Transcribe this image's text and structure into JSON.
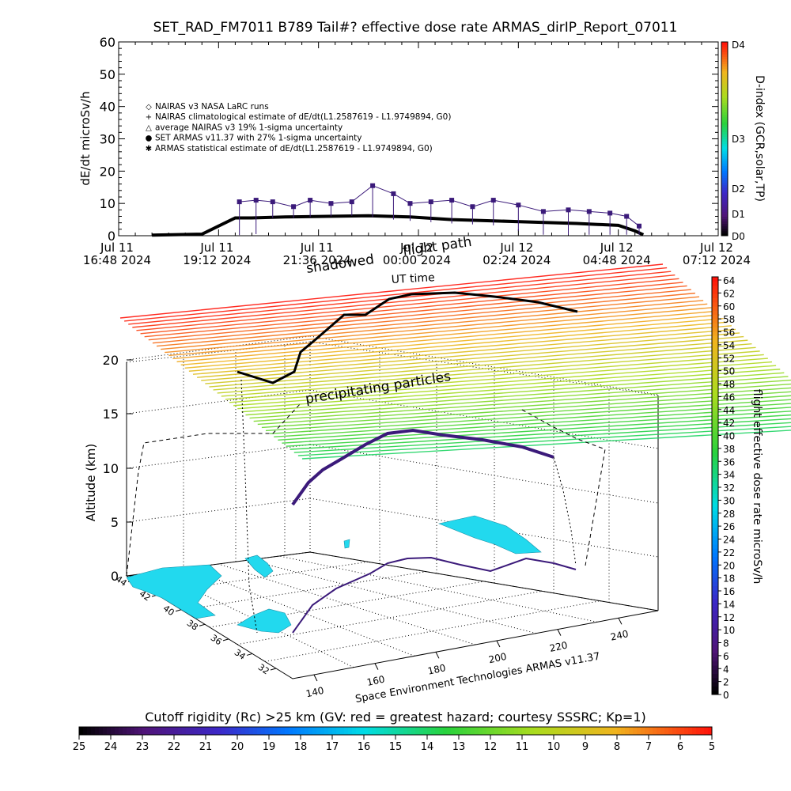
{
  "title": "SET_RAD_FM7011  B789 Tail#? effective dose rate ARMAS_dirIP_Report_07011",
  "chart_data": [
    {
      "type": "line",
      "name": "time-series",
      "ylabel": "dE/dt microSv/h",
      "ylim": [
        0,
        60
      ],
      "yticks": [
        "0",
        "10",
        "20",
        "30",
        "40",
        "50",
        "60"
      ],
      "xticks": [
        {
          "l1": "Jul 11",
          "l2": "16:48 2024"
        },
        {
          "l1": "Jul 11",
          "l2": "19:12 2024"
        },
        {
          "l1": "Jul 11",
          "l2": "21:36 2024"
        },
        {
          "l1": "Jul 12",
          "l2": "00:00 2024"
        },
        {
          "l1": "Jul 12",
          "l2": "02:24 2024"
        },
        {
          "l1": "Jul 12",
          "l2": "04:48 2024"
        },
        {
          "l1": "Jul 12",
          "l2": "07:12 2024"
        }
      ],
      "xlim_hours": [
        0,
        14.4
      ],
      "legend": [
        {
          "symbol": "◇",
          "text": "NAIRAS v3 NASA LaRC runs"
        },
        {
          "symbol": "+",
          "text": "NAIRAS climatological estimate of dE/dt(L1.2587619 - L1.9749894, G0)"
        },
        {
          "symbol": "△",
          "text": "average NAIRAS v3 19% 1-sigma uncertainty"
        },
        {
          "symbol": "●",
          "text": "SET ARMAS v11.37 with 27% 1-sigma uncertainty",
          "color": "#2233cc"
        },
        {
          "symbol": "✱",
          "text": "ARMAS statistical estimate of dE/dt(L1.2587619 - L1.9749894, G0)"
        }
      ],
      "legend_placement": "upper-left",
      "series": [
        {
          "points_hours": [
            0.8,
            2.0,
            2.8,
            3.2,
            4.0,
            5.0,
            6.0,
            7.0,
            8.0,
            9.0,
            10.0,
            11.0,
            11.5,
            12.0,
            12.4,
            12.6
          ],
          "values": [
            0.2,
            0.5,
            5.5,
            5.5,
            5.8,
            6.0,
            6.2,
            5.8,
            5.0,
            4.6,
            4.2,
            3.8,
            3.5,
            3.2,
            1.5,
            0.3
          ],
          "color": "#000000"
        },
        {
          "points_hours": [
            2.9,
            3.3,
            3.7,
            4.2,
            4.6,
            5.1,
            5.6,
            6.1,
            6.6,
            7.0,
            7.5,
            8.0,
            8.5,
            9.0,
            9.6,
            10.2,
            10.8,
            11.3,
            11.8,
            12.2,
            12.5
          ],
          "values": [
            10.5,
            11,
            10.5,
            9,
            11,
            10,
            10.5,
            15.5,
            13,
            10,
            10.5,
            11,
            9,
            11,
            9.5,
            7.5,
            8,
            7.5,
            7,
            6,
            3
          ],
          "color": "#3b1a7a"
        }
      ],
      "right_axis": {
        "label": "D-index (GCR,solar,TP)",
        "ticks": [
          "D0",
          "D1",
          "D2",
          "D3",
          "D4"
        ]
      }
    },
    {
      "type": "scatter",
      "name": "3d-flight-path",
      "zlabel": "Altitude (km)",
      "zticks": [
        "0",
        "5",
        "10",
        "15",
        "20"
      ],
      "lon_ticks": [
        "140",
        "160",
        "180",
        "200",
        "220",
        "240"
      ],
      "lat_ticks": [
        "44",
        "42",
        "40",
        "38",
        "36",
        "34",
        "32"
      ],
      "annotations": [
        "flight path",
        "shadowed",
        "UT time",
        "precipitating particles"
      ],
      "colorbar": {
        "label": "flight effective dose rate microSv/h",
        "ticks": [
          "0",
          "2",
          "4",
          "6",
          "8",
          "10",
          "12",
          "14",
          "16",
          "18",
          "20",
          "22",
          "24",
          "26",
          "28",
          "30",
          "32",
          "34",
          "36",
          "38",
          "40",
          "42",
          "44",
          "46",
          "48",
          "50",
          "52",
          "54",
          "56",
          "58",
          "60",
          "62",
          "64"
        ]
      },
      "credit": "Space Environment Technologies ARMAS v11.37"
    },
    {
      "type": "heatmap",
      "name": "cutoff-rigidity-scale",
      "label": "Cutoff rigidity (Rc) >25 km (GV: red = greatest hazard; courtesy SSSRC; Kp=1)",
      "ticks": [
        "25",
        "24",
        "23",
        "22",
        "21",
        "20",
        "19",
        "18",
        "17",
        "16",
        "15",
        "14",
        "13",
        "12",
        "11",
        "10",
        "9",
        "8",
        "7",
        "6",
        "5"
      ]
    }
  ]
}
